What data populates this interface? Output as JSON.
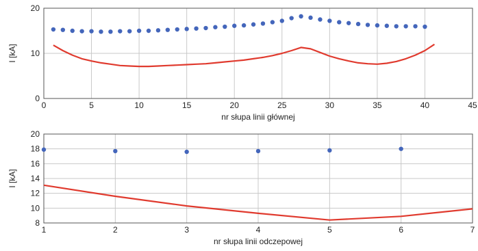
{
  "colors": {
    "dots": "#4466bb",
    "line": "#e03a2e",
    "grid": "#c8c8c8",
    "plot_bg": "#ffffff"
  },
  "chart_data": [
    {
      "type": "line",
      "xlabel": "nr słupa linii głównej",
      "ylabel": "I [kA]",
      "xlim": [
        0,
        45
      ],
      "ylim": [
        0,
        20
      ],
      "xticks": [
        0,
        5,
        10,
        15,
        20,
        25,
        30,
        35,
        40,
        45
      ],
      "yticks": [
        0,
        10,
        20
      ],
      "grid": true,
      "series": [
        {
          "style": "scatter",
          "x": [
            1,
            2,
            3,
            4,
            5,
            6,
            7,
            8,
            9,
            10,
            11,
            12,
            13,
            14,
            15,
            16,
            17,
            18,
            19,
            20,
            21,
            22,
            23,
            24,
            25,
            26,
            27,
            28,
            29,
            30,
            31,
            32,
            33,
            34,
            35,
            36,
            37,
            38,
            39,
            40
          ],
          "values": [
            15.3,
            15.2,
            15.0,
            14.9,
            14.9,
            14.8,
            14.8,
            14.9,
            14.9,
            15.0,
            15.0,
            15.1,
            15.2,
            15.3,
            15.4,
            15.5,
            15.6,
            15.8,
            15.9,
            16.1,
            16.2,
            16.4,
            16.6,
            16.9,
            17.2,
            17.8,
            18.2,
            17.9,
            17.5,
            17.2,
            16.9,
            16.7,
            16.5,
            16.3,
            16.2,
            16.1,
            16.0,
            16.0,
            16.0,
            15.9
          ]
        },
        {
          "style": "line",
          "x": [
            1,
            2,
            3,
            4,
            5,
            6,
            7,
            8,
            9,
            10,
            11,
            12,
            13,
            14,
            15,
            16,
            17,
            18,
            19,
            20,
            21,
            22,
            23,
            24,
            25,
            26,
            27,
            28,
            29,
            30,
            31,
            32,
            33,
            34,
            35,
            36,
            37,
            38,
            39,
            40,
            41
          ],
          "values": [
            11.8,
            10.6,
            9.6,
            8.8,
            8.3,
            7.9,
            7.6,
            7.3,
            7.2,
            7.1,
            7.1,
            7.2,
            7.3,
            7.4,
            7.5,
            7.6,
            7.7,
            7.9,
            8.1,
            8.3,
            8.5,
            8.8,
            9.1,
            9.5,
            10.0,
            10.6,
            11.3,
            11.0,
            10.2,
            9.4,
            8.8,
            8.3,
            7.9,
            7.7,
            7.6,
            7.8,
            8.2,
            8.8,
            9.6,
            10.6,
            12.0
          ]
        }
      ]
    },
    {
      "type": "line",
      "xlabel": "nr słupa linii odczepowej",
      "ylabel": "I [kA]",
      "xlim": [
        1,
        7
      ],
      "ylim": [
        8,
        20
      ],
      "xticks": [
        1,
        2,
        3,
        4,
        5,
        6,
        7
      ],
      "yticks": [
        8,
        10,
        12,
        14,
        16,
        18,
        20
      ],
      "grid": true,
      "series": [
        {
          "style": "scatter",
          "x": [
            1,
            2,
            3,
            4,
            5,
            6
          ],
          "values": [
            17.9,
            17.7,
            17.6,
            17.7,
            17.8,
            18.0
          ]
        },
        {
          "style": "line",
          "x": [
            1,
            2,
            3,
            4,
            5,
            6,
            7
          ],
          "values": [
            13.1,
            11.6,
            10.3,
            9.3,
            8.4,
            8.9,
            9.9
          ]
        }
      ]
    }
  ]
}
